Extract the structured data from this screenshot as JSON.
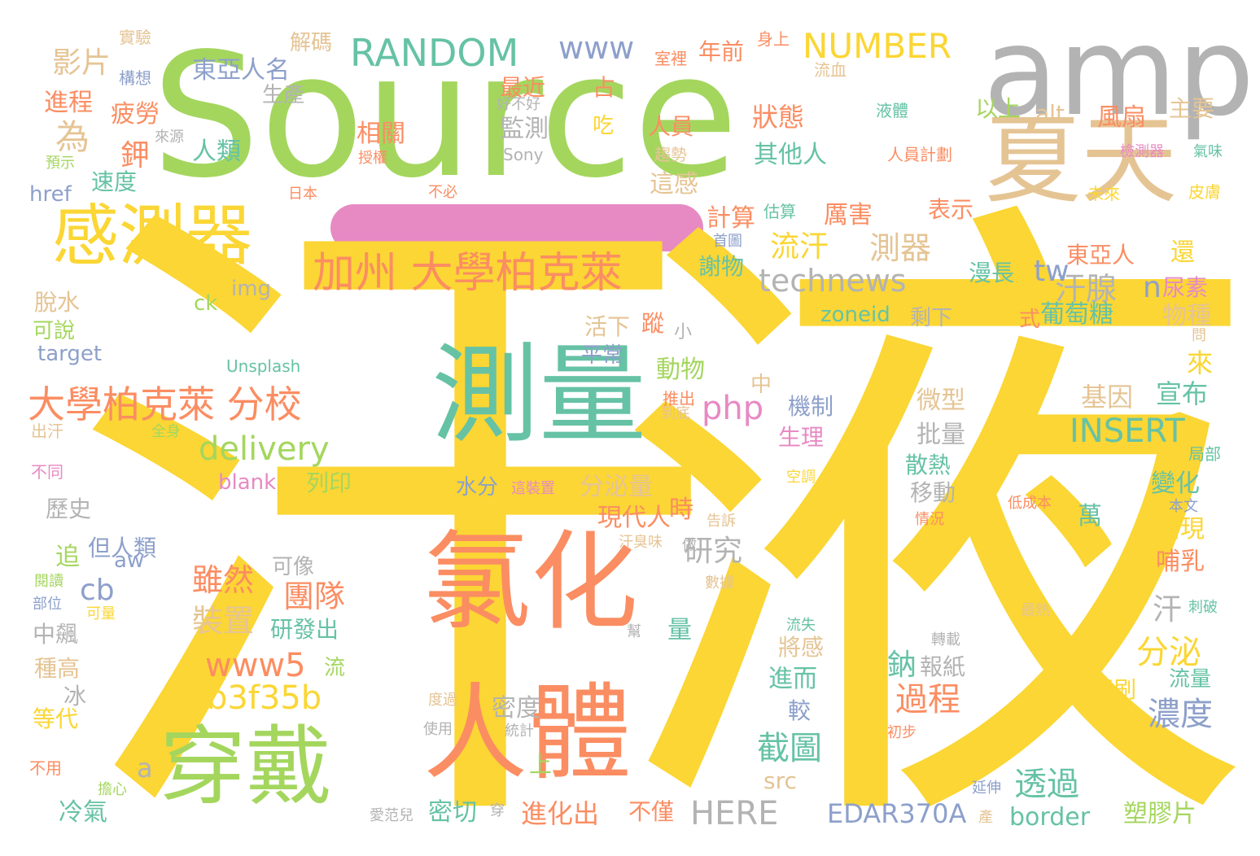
{
  "palette": {
    "yellow": "#fbd634",
    "green": "#a4d65e",
    "orange": "#fb8d62",
    "teal": "#66c2a5",
    "blue": "#8da0cb",
    "pink": "#e78ac3",
    "tan": "#e5c494",
    "gray": "#b3b3b3",
    "accent_bar": "#e78ac3"
  },
  "words": [
    {
      "text": "汗",
      "color": "yellow"
    },
    {
      "text": "液",
      "color": "yellow"
    },
    {
      "text": "Source",
      "color": "green"
    },
    {
      "text": "amp",
      "color": "gray"
    },
    {
      "text": "夏天",
      "color": "tan"
    },
    {
      "text": "氯化",
      "color": "orange"
    },
    {
      "text": "測量",
      "color": "teal"
    },
    {
      "text": "人體",
      "color": "orange"
    },
    {
      "text": "穿戴",
      "color": "green"
    },
    {
      "text": "感測器",
      "color": "yellow"
    },
    {
      "text": "加州 大學柏克萊",
      "color": "orange"
    },
    {
      "text": "大學柏克萊 分校",
      "color": "orange"
    },
    {
      "text": "delivery",
      "color": "green"
    },
    {
      "text": "a4b3f35b",
      "color": "yellow"
    },
    {
      "text": "www5",
      "color": "orange"
    },
    {
      "text": "RANDOM",
      "color": "teal"
    },
    {
      "text": "NUMBER",
      "color": "yellow"
    },
    {
      "text": "www",
      "color": "blue"
    },
    {
      "text": "technews",
      "color": "gray"
    },
    {
      "text": "INSERT",
      "color": "teal"
    },
    {
      "text": "php",
      "color": "pink"
    },
    {
      "text": "HERE",
      "color": "gray"
    },
    {
      "text": "EDAR370A",
      "color": "blue"
    },
    {
      "text": "流汗",
      "color": "yellow"
    },
    {
      "text": "測器",
      "color": "tan"
    },
    {
      "text": "汗腺",
      "color": "gray"
    },
    {
      "text": "影片",
      "color": "tan"
    },
    {
      "text": "進程",
      "color": "orange"
    },
    {
      "text": "東亞人名",
      "color": "blue"
    },
    {
      "text": "解碼",
      "color": "tan"
    },
    {
      "text": "疲勞",
      "color": "orange"
    },
    {
      "text": "人類",
      "color": "teal"
    },
    {
      "text": "為",
      "color": "tan"
    },
    {
      "text": "鉀",
      "color": "orange"
    },
    {
      "text": "速度",
      "color": "teal"
    },
    {
      "text": "href",
      "color": "blue"
    },
    {
      "text": "生產",
      "color": "gray"
    },
    {
      "text": "最近",
      "color": "orange"
    },
    {
      "text": "監測",
      "color": "gray"
    },
    {
      "text": "相關",
      "color": "orange"
    },
    {
      "text": "吃",
      "color": "yellow"
    },
    {
      "text": "占",
      "color": "orange"
    },
    {
      "text": "人員",
      "color": "orange"
    },
    {
      "text": "這感",
      "color": "tan"
    },
    {
      "text": "年前",
      "color": "orange"
    },
    {
      "text": "狀態",
      "color": "orange"
    },
    {
      "text": "其他人",
      "color": "teal"
    },
    {
      "text": "以上",
      "color": "green"
    },
    {
      "text": "alt",
      "color": "tan"
    },
    {
      "text": "主要",
      "color": "tan"
    },
    {
      "text": "風扇",
      "color": "orange"
    },
    {
      "text": "計算",
      "color": "orange"
    },
    {
      "text": "厲害",
      "color": "orange"
    },
    {
      "text": "表示",
      "color": "orange"
    },
    {
      "text": "漫長",
      "color": "teal"
    },
    {
      "text": "tw",
      "color": "blue"
    },
    {
      "text": "東亞人",
      "color": "orange"
    },
    {
      "text": "還",
      "color": "yellow"
    },
    {
      "text": "謝物",
      "color": "teal"
    },
    {
      "text": "img",
      "color": "gray"
    },
    {
      "text": "ck",
      "color": "green"
    },
    {
      "text": "脫水",
      "color": "tan"
    },
    {
      "text": "可說",
      "color": "green"
    },
    {
      "text": "target",
      "color": "blue"
    },
    {
      "text": "zoneid",
      "color": "teal"
    },
    {
      "text": "剩下",
      "color": "gray"
    },
    {
      "text": "n",
      "color": "blue"
    },
    {
      "text": "尿素",
      "color": "pink"
    },
    {
      "text": "式",
      "color": "orange"
    },
    {
      "text": "葡萄糖",
      "color": "teal"
    },
    {
      "text": "物種",
      "color": "tan"
    },
    {
      "text": "來",
      "color": "yellow"
    },
    {
      "text": "宣布",
      "color": "teal"
    },
    {
      "text": "基因",
      "color": "tan"
    },
    {
      "text": "活下",
      "color": "tan"
    },
    {
      "text": "蹤",
      "color": "orange"
    },
    {
      "text": "平常",
      "color": "blue"
    },
    {
      "text": "動物",
      "color": "green"
    },
    {
      "text": "中",
      "color": "tan"
    },
    {
      "text": "機制",
      "color": "blue"
    },
    {
      "text": "生理",
      "color": "pink"
    },
    {
      "text": "微型",
      "color": "tan"
    },
    {
      "text": "批量",
      "color": "gray"
    },
    {
      "text": "散熱",
      "color": "teal"
    },
    {
      "text": "移動",
      "color": "gray"
    },
    {
      "text": "水分",
      "color": "blue"
    },
    {
      "text": "分泌量",
      "color": "tan"
    },
    {
      "text": "blank",
      "color": "pink"
    },
    {
      "text": "列印",
      "color": "green"
    },
    {
      "text": "歷史",
      "color": "gray"
    },
    {
      "text": "現代人",
      "color": "orange"
    },
    {
      "text": "時",
      "color": "orange"
    },
    {
      "text": "研究",
      "color": "gray"
    },
    {
      "text": "但人類",
      "color": "blue"
    },
    {
      "text": "aw",
      "color": "blue"
    },
    {
      "text": "可像",
      "color": "gray"
    },
    {
      "text": "雖然",
      "color": "orange"
    },
    {
      "text": "團隊",
      "color": "orange"
    },
    {
      "text": "裝置",
      "color": "tan"
    },
    {
      "text": "研發出",
      "color": "teal"
    },
    {
      "text": "cb",
      "color": "blue"
    },
    {
      "text": "追",
      "color": "green"
    },
    {
      "text": "中飆",
      "color": "gray"
    },
    {
      "text": "種高",
      "color": "tan"
    },
    {
      "text": "冰",
      "color": "gray"
    },
    {
      "text": "等代",
      "color": "yellow"
    },
    {
      "text": "流",
      "color": "green"
    },
    {
      "text": "量",
      "color": "teal"
    },
    {
      "text": "將感",
      "color": "tan"
    },
    {
      "text": "進而",
      "color": "teal"
    },
    {
      "text": "較",
      "color": "blue"
    },
    {
      "text": "密度",
      "color": "gray"
    },
    {
      "text": "鈉",
      "color": "teal"
    },
    {
      "text": "報紙",
      "color": "gray"
    },
    {
      "text": "過程",
      "color": "orange"
    },
    {
      "text": "汗",
      "color": "gray"
    },
    {
      "text": "分泌",
      "color": "yellow"
    },
    {
      "text": "濃度",
      "color": "blue"
    },
    {
      "text": "萬",
      "color": "teal"
    },
    {
      "text": "出現",
      "color": "yellow"
    },
    {
      "text": "變化",
      "color": "teal"
    },
    {
      "text": "哺乳",
      "color": "orange"
    },
    {
      "text": "截圖",
      "color": "teal"
    },
    {
      "text": "src",
      "color": "tan"
    },
    {
      "text": "透過",
      "color": "teal"
    },
    {
      "text": "a",
      "color": "gray"
    },
    {
      "text": "上",
      "color": "green"
    },
    {
      "text": "進化出",
      "color": "orange"
    },
    {
      "text": "不僅",
      "color": "orange"
    },
    {
      "text": "密切",
      "color": "teal"
    },
    {
      "text": "冷氣",
      "color": "teal"
    },
    {
      "text": "border",
      "color": "teal"
    },
    {
      "text": "塑膠片",
      "color": "green"
    },
    {
      "text": "流量",
      "color": "teal"
    },
    {
      "text": "印刷",
      "color": "yellow"
    },
    {
      "text": "實驗",
      "color": "tan"
    },
    {
      "text": "構想",
      "color": "blue"
    },
    {
      "text": "室裡",
      "color": "orange"
    },
    {
      "text": "身上",
      "color": "orange"
    },
    {
      "text": "流血",
      "color": "tan"
    },
    {
      "text": "好不好",
      "color": "gray"
    },
    {
      "text": "液體",
      "color": "teal"
    },
    {
      "text": "來源",
      "color": "gray"
    },
    {
      "text": "授權",
      "color": "orange"
    },
    {
      "text": "Sony",
      "color": "gray"
    },
    {
      "text": "趨勢",
      "color": "tan"
    },
    {
      "text": "人員計劃",
      "color": "orange"
    },
    {
      "text": "檢測器",
      "color": "pink"
    },
    {
      "text": "氣味",
      "color": "teal"
    },
    {
      "text": "預示",
      "color": "green"
    },
    {
      "text": "日本",
      "color": "orange"
    },
    {
      "text": "不必",
      "color": "orange"
    },
    {
      "text": "未來",
      "color": "yellow"
    },
    {
      "text": "皮膚",
      "color": "yellow"
    },
    {
      "text": "估算",
      "color": "teal"
    },
    {
      "text": "首圖",
      "color": "blue"
    },
    {
      "text": "Unsplash",
      "color": "teal"
    },
    {
      "text": "小",
      "color": "gray"
    },
    {
      "text": "問",
      "color": "tan"
    },
    {
      "text": "出汗",
      "color": "tan"
    },
    {
      "text": "全身",
      "color": "green"
    },
    {
      "text": "推出",
      "color": "orange"
    },
    {
      "text": "到底",
      "color": "tan"
    },
    {
      "text": "空調",
      "color": "yellow"
    },
    {
      "text": "局部",
      "color": "teal"
    },
    {
      "text": "不同",
      "color": "pink"
    },
    {
      "text": "這裝置",
      "color": "pink"
    },
    {
      "text": "低成本",
      "color": "orange"
    },
    {
      "text": "本文",
      "color": "blue"
    },
    {
      "text": "告訴",
      "color": "tan"
    },
    {
      "text": "情況",
      "color": "orange"
    },
    {
      "text": "汗臭味",
      "color": "tan"
    },
    {
      "text": "做",
      "color": "gray"
    },
    {
      "text": "閱讀",
      "color": "green"
    },
    {
      "text": "數據",
      "color": "tan"
    },
    {
      "text": "部位",
      "color": "blue"
    },
    {
      "text": "可量",
      "color": "yellow"
    },
    {
      "text": "最熱",
      "color": "tan"
    },
    {
      "text": "刺破",
      "color": "teal"
    },
    {
      "text": "幫",
      "color": "gray"
    },
    {
      "text": "流失",
      "color": "teal"
    },
    {
      "text": "轉載",
      "color": "gray"
    },
    {
      "text": "度過",
      "color": "tan"
    },
    {
      "text": "使用",
      "color": "gray"
    },
    {
      "text": "統計",
      "color": "gray"
    },
    {
      "text": "初步",
      "color": "orange"
    },
    {
      "text": "不用",
      "color": "orange"
    },
    {
      "text": "擔心",
      "color": "green"
    },
    {
      "text": "延伸",
      "color": "blue"
    },
    {
      "text": "愛范兒",
      "color": "gray"
    },
    {
      "text": "穿",
      "color": "gray"
    },
    {
      "text": "產",
      "color": "tan"
    }
  ]
}
